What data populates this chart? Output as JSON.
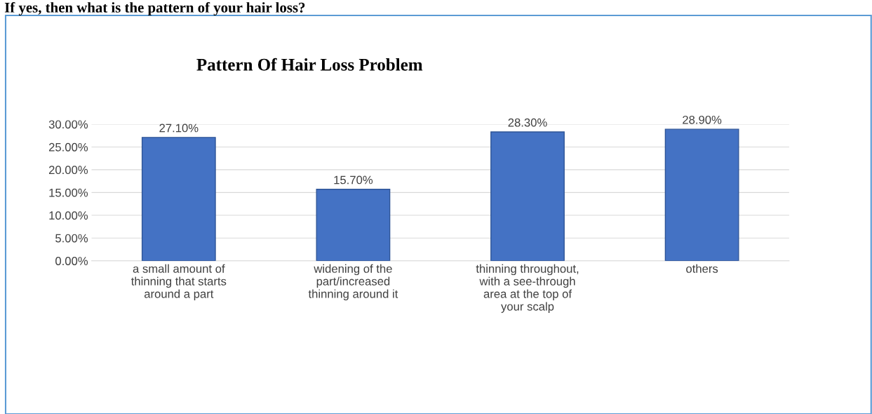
{
  "chart_data": {
    "type": "bar",
    "title": "Pattern Of Hair Loss Problem",
    "annotations": [
      "If yes, then what is the pattern of your hair loss?"
    ],
    "categories": [
      "a small amount of thinning that starts around a part",
      "widening of the part/increased thinning around it",
      "thinning throughout, with a see-through area at the top of your scalp",
      "others"
    ],
    "values": [
      27.1,
      15.7,
      28.3,
      28.9
    ],
    "value_labels": [
      "27.10%",
      "15.70%",
      "28.30%",
      "28.90%"
    ],
    "color": "#4472c4",
    "ylim": [
      0,
      30
    ],
    "yticks": [
      {
        "value": 0,
        "label": "0.00%"
      },
      {
        "value": 5,
        "label": "5.00%"
      },
      {
        "value": 10,
        "label": "10.00%"
      },
      {
        "value": 15,
        "label": "15.00%"
      },
      {
        "value": 20,
        "label": "20.00%"
      },
      {
        "value": 25,
        "label": "25.00%"
      },
      {
        "value": 30,
        "label": "30.00%"
      }
    ],
    "grid": "y"
  }
}
